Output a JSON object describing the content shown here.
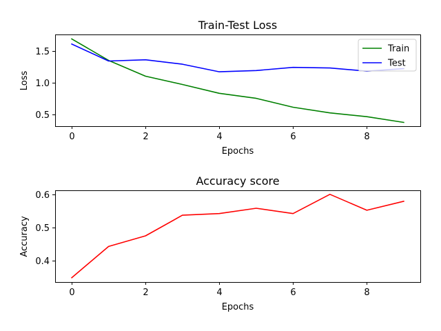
{
  "chart_data": [
    {
      "type": "line",
      "title": "Train-Test Loss",
      "xlabel": "Epochs",
      "ylabel": "Loss",
      "xlim": [
        -0.45,
        9.45
      ],
      "ylim": [
        0.31,
        1.76
      ],
      "xticks": [
        0,
        2,
        4,
        6,
        8
      ],
      "xtick_labels": [
        "0",
        "2",
        "4",
        "6",
        "8"
      ],
      "yticks": [
        0.5,
        1.0,
        1.5
      ],
      "ytick_labels": [
        "0.5",
        "1.0",
        "1.5"
      ],
      "grid": false,
      "legend": "upper-right",
      "x": [
        0,
        1,
        2,
        3,
        4,
        5,
        6,
        7,
        8,
        9
      ],
      "series": [
        {
          "name": "Train",
          "color": "#008000",
          "values": [
            1.69,
            1.35,
            1.1,
            0.97,
            0.83,
            0.75,
            0.61,
            0.52,
            0.46,
            0.37
          ]
        },
        {
          "name": "Test",
          "color": "#0000ff",
          "values": [
            1.61,
            1.34,
            1.36,
            1.29,
            1.17,
            1.19,
            1.24,
            1.23,
            1.18,
            1.22
          ]
        }
      ]
    },
    {
      "type": "line",
      "title": "Accuracy score",
      "xlabel": "Epochs",
      "ylabel": "Accuracy",
      "xlim": [
        -0.45,
        9.45
      ],
      "ylim": [
        0.336,
        0.612
      ],
      "xticks": [
        0,
        2,
        4,
        6,
        8
      ],
      "xtick_labels": [
        "0",
        "2",
        "4",
        "6",
        "8"
      ],
      "yticks": [
        0.4,
        0.5,
        0.6
      ],
      "ytick_labels": [
        "0.4",
        "0.5",
        "0.6"
      ],
      "grid": false,
      "legend": "none",
      "x": [
        0,
        1,
        2,
        3,
        4,
        5,
        6,
        7,
        8,
        9
      ],
      "series": [
        {
          "color": "#ff0000",
          "values": [
            0.349,
            0.443,
            0.475,
            0.537,
            0.542,
            0.558,
            0.542,
            0.6,
            0.552,
            0.579
          ]
        }
      ]
    }
  ]
}
